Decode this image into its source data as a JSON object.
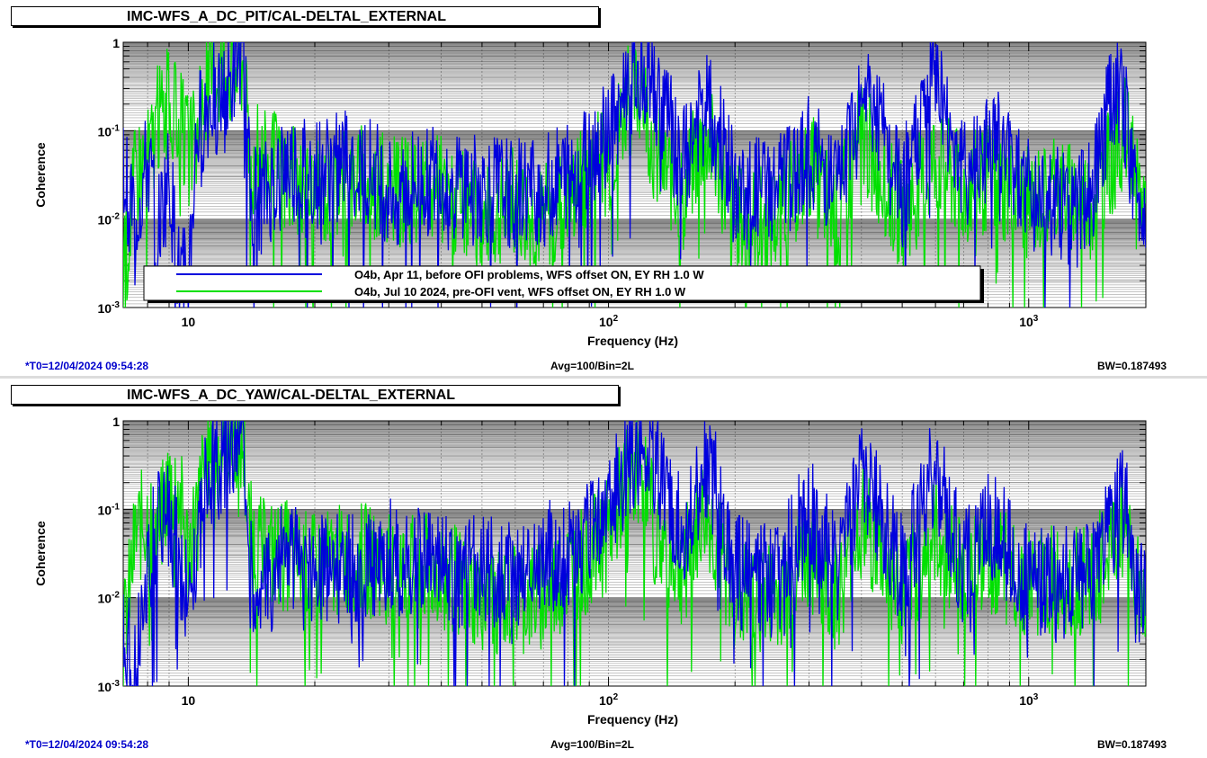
{
  "panels": [
    {
      "title": "IMC-WFS_A_DC_PIT/CAL-DELTAL_EXTERNAL",
      "footer": {
        "t0": "*T0=12/04/2024 09:54:28",
        "avg": "Avg=100/Bin=2L",
        "bw": "BW=0.187493"
      },
      "legend": [
        {
          "label": "O4b, Apr 11, before OFI problems, WFS offset ON, EY RH 1.0 W",
          "color": "#0000dd"
        },
        {
          "label": "O4b, Jul 10 2024, pre-OFI vent, WFS offset ON, EY RH 1.0 W",
          "color": "#00e000"
        }
      ]
    },
    {
      "title": "IMC-WFS_A_DC_YAW/CAL-DELTAL_EXTERNAL",
      "footer": {
        "t0": "*T0=12/04/2024 09:54:28",
        "avg": "Avg=100/Bin=2L",
        "bw": "BW=0.187493"
      },
      "legend": []
    }
  ],
  "chart_data": [
    {
      "type": "line",
      "title": "IMC-WFS_A_DC_PIT/CAL-DELTAL_EXTERNAL",
      "xlabel": "Frequency (Hz)",
      "ylabel": "Coherence",
      "xscale": "log",
      "yscale": "log",
      "xlim": [
        7,
        1900
      ],
      "ylim": [
        0.001,
        1
      ],
      "x_tick_labels": [
        "10",
        "10^2",
        "10^3"
      ],
      "y_tick_labels": [
        "10^-3",
        "10^-2",
        "10^-1",
        "1"
      ],
      "grid": true,
      "legend_position": "bottom-left",
      "series": [
        {
          "name": "O4b, Apr 11, before OFI problems, WFS offset ON, EY RH 1.0 W",
          "color": "#0000dd",
          "x": [
            7,
            7.5,
            8,
            8.5,
            9,
            9.5,
            10,
            10.5,
            11,
            11.5,
            12,
            12.5,
            13,
            13.5,
            14,
            15,
            17,
            20,
            25,
            30,
            40,
            50,
            60,
            70,
            80,
            90,
            100,
            110,
            120,
            130,
            150,
            170,
            180,
            200,
            250,
            300,
            350,
            400,
            500,
            600,
            700,
            800,
            1000,
            1200,
            1400,
            1600,
            1700,
            1800,
            1900
          ],
          "y": [
            0.03,
            0.01,
            0.04,
            0.008,
            0.03,
            0.002,
            0.002,
            0.1,
            0.15,
            0.25,
            0.2,
            0.25,
            0.6,
            0.9,
            0.02,
            0.015,
            0.04,
            0.03,
            0.05,
            0.02,
            0.03,
            0.02,
            0.02,
            0.02,
            0.03,
            0.05,
            0.1,
            0.3,
            0.6,
            0.3,
            0.04,
            0.2,
            0.12,
            0.02,
            0.02,
            0.06,
            0.02,
            0.4,
            0.02,
            0.5,
            0.03,
            0.1,
            0.02,
            0.015,
            0.02,
            0.3,
            0.15,
            0.015,
            0.012
          ]
        },
        {
          "name": "O4b, Jul 10 2024, pre-OFI vent, WFS offset ON, EY RH 1.0 W",
          "color": "#00e000",
          "x": [
            7,
            7.5,
            8,
            8.5,
            9,
            9.5,
            10,
            10.5,
            11,
            11.5,
            12,
            12.5,
            13,
            13.5,
            14,
            15,
            17,
            20,
            25,
            30,
            40,
            50,
            60,
            70,
            80,
            90,
            100,
            110,
            120,
            130,
            150,
            170,
            180,
            200,
            250,
            300,
            350,
            400,
            500,
            600,
            700,
            800,
            1000,
            1200,
            1400,
            1600,
            1700,
            1800,
            1900
          ],
          "y": [
            0.002,
            0.04,
            0.05,
            0.15,
            0.2,
            0.12,
            0.06,
            0.08,
            0.3,
            0.45,
            0.5,
            0.5,
            0.5,
            0.7,
            0.04,
            0.05,
            0.03,
            0.02,
            0.03,
            0.02,
            0.02,
            0.01,
            0.015,
            0.01,
            0.02,
            0.03,
            0.05,
            0.2,
            0.3,
            0.05,
            0.02,
            0.1,
            0.05,
            0.01,
            0.01,
            0.04,
            0.01,
            0.1,
            0.01,
            0.05,
            0.02,
            0.03,
            0.015,
            0.02,
            0.015,
            0.05,
            0.1,
            0.02,
            0.015
          ]
        }
      ]
    },
    {
      "type": "line",
      "title": "IMC-WFS_A_DC_YAW/CAL-DELTAL_EXTERNAL",
      "xlabel": "Frequency (Hz)",
      "ylabel": "Coherence",
      "xscale": "log",
      "yscale": "log",
      "xlim": [
        7,
        1900
      ],
      "ylim": [
        0.001,
        1
      ],
      "x_tick_labels": [
        "10",
        "10^2",
        "10^3"
      ],
      "y_tick_labels": [
        "10^-3",
        "10^-2",
        "10^-1",
        "1"
      ],
      "grid": true,
      "series": [
        {
          "color": "#0000dd",
          "x": [
            7,
            7.5,
            8,
            8.5,
            9,
            9.5,
            10,
            10.5,
            11,
            11.5,
            12,
            12.5,
            13,
            13.5,
            14,
            15,
            17,
            20,
            25,
            30,
            40,
            50,
            60,
            70,
            80,
            90,
            100,
            110,
            120,
            130,
            150,
            170,
            180,
            200,
            250,
            300,
            350,
            400,
            500,
            600,
            700,
            800,
            1000,
            1200,
            1400,
            1600,
            1700,
            1800,
            1900
          ],
          "y": [
            0.005,
            0.002,
            0.02,
            0.1,
            0.08,
            0.03,
            0.008,
            0.05,
            0.2,
            0.3,
            0.4,
            0.5,
            0.7,
            0.8,
            0.02,
            0.01,
            0.03,
            0.02,
            0.02,
            0.03,
            0.02,
            0.02,
            0.02,
            0.03,
            0.03,
            0.05,
            0.1,
            0.3,
            0.5,
            0.3,
            0.05,
            0.3,
            0.2,
            0.02,
            0.015,
            0.1,
            0.02,
            0.3,
            0.02,
            0.3,
            0.02,
            0.08,
            0.015,
            0.015,
            0.02,
            0.1,
            0.15,
            0.012,
            0.01
          ]
        },
        {
          "color": "#00e000",
          "x": [
            7,
            7.5,
            8,
            8.5,
            9,
            9.5,
            10,
            10.5,
            11,
            11.5,
            12,
            12.5,
            13,
            13.5,
            14,
            15,
            17,
            20,
            25,
            30,
            40,
            50,
            60,
            70,
            80,
            90,
            100,
            110,
            120,
            130,
            150,
            170,
            180,
            200,
            250,
            300,
            350,
            400,
            500,
            600,
            700,
            800,
            1000,
            1200,
            1400,
            1600,
            1700,
            1800,
            1900
          ],
          "y": [
            0.003,
            0.05,
            0.08,
            0.05,
            0.2,
            0.15,
            0.03,
            0.1,
            0.3,
            0.4,
            0.5,
            0.6,
            0.7,
            0.5,
            0.05,
            0.03,
            0.03,
            0.02,
            0.03,
            0.02,
            0.02,
            0.01,
            0.01,
            0.01,
            0.02,
            0.03,
            0.05,
            0.2,
            0.3,
            0.05,
            0.02,
            0.1,
            0.04,
            0.01,
            0.01,
            0.03,
            0.01,
            0.08,
            0.01,
            0.05,
            0.02,
            0.03,
            0.015,
            0.015,
            0.015,
            0.04,
            0.08,
            0.015,
            0.008
          ]
        }
      ]
    }
  ]
}
